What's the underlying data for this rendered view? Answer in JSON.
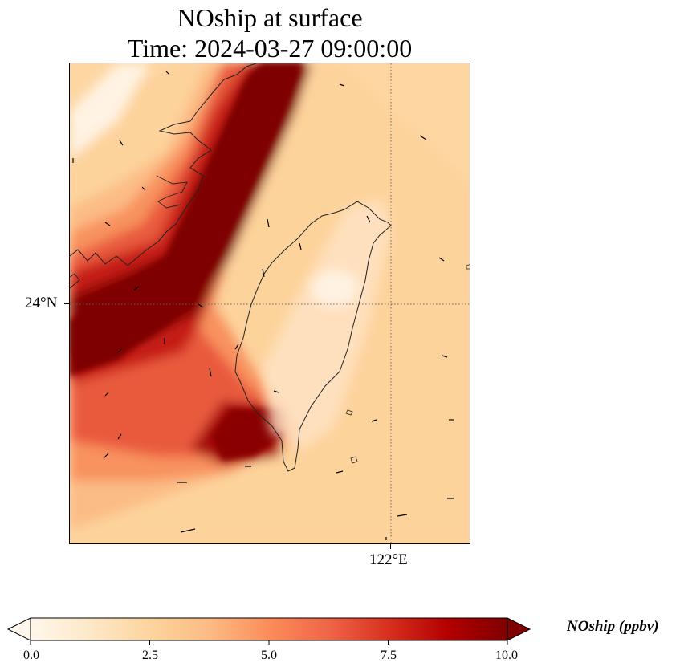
{
  "title": {
    "line1": "NOship at surface",
    "line2": "Time: 2024-03-27 09:00:00"
  },
  "map": {
    "region": "Taiwan Strait",
    "gridlines": {
      "latitude": "24°N",
      "longitude": "122°E",
      "style": "dotted"
    },
    "field": "NOship concentration (ppbv)",
    "wind_vectors": true,
    "colors": {
      "low": "#fff5eb",
      "mid": "#f57948",
      "high": "#7f0000",
      "background_field": "#fdd6a2"
    }
  },
  "colorbar": {
    "label": "NOship (ppbv)",
    "ticks": [
      "0.0",
      "2.5",
      "5.0",
      "7.5",
      "10.0"
    ],
    "min": 0.0,
    "max": 10.0,
    "extend": "both",
    "colormap": "OrRd"
  }
}
